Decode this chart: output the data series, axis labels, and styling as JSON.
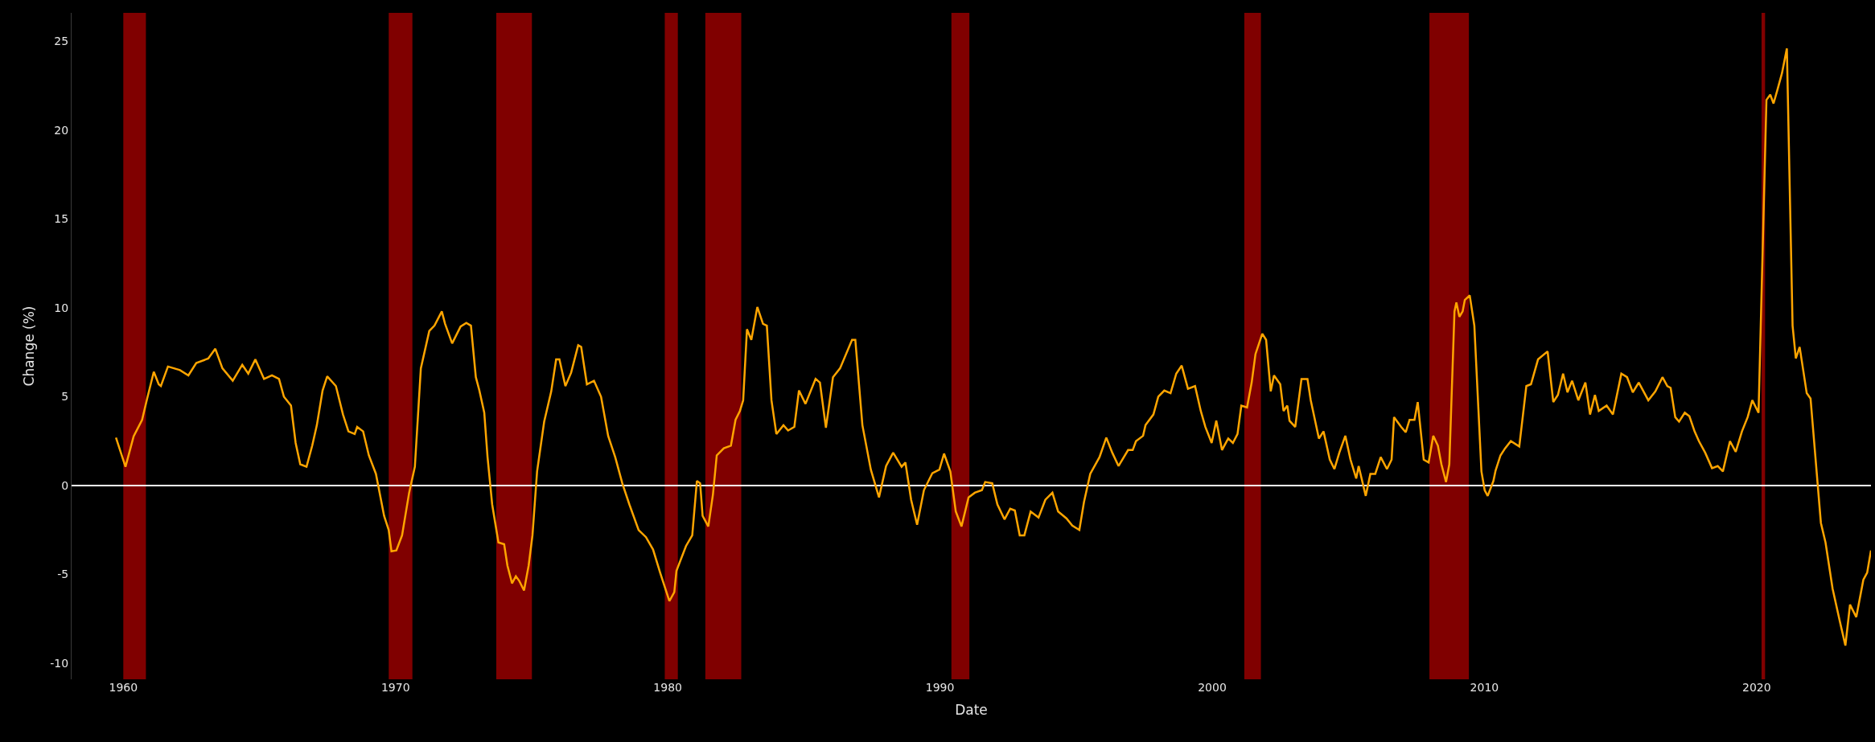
{
  "chart_data": {
    "type": "line",
    "xlabel": "Date",
    "ylabel": "Change (%)",
    "xlim": [
      1958.1,
      2024.2
    ],
    "xticks": [
      1960,
      1970,
      1980,
      1990,
      2000,
      2010,
      2020
    ],
    "ylim": [
      -10.9,
      26.6
    ],
    "yticks": [
      -10,
      -5,
      0,
      5,
      10,
      15,
      20,
      25
    ],
    "grid": false,
    "ref_lines": [
      {
        "axis": "y",
        "value": 0,
        "color": "#ffffff"
      }
    ],
    "bands": [
      {
        "axis": "x",
        "from": 1960.0,
        "to": 1960.83,
        "color": "#800000"
      },
      {
        "axis": "x",
        "from": 1969.75,
        "to": 1970.62,
        "color": "#800000"
      },
      {
        "axis": "x",
        "from": 1973.7,
        "to": 1975.01,
        "color": "#800000"
      },
      {
        "axis": "x",
        "from": 1979.89,
        "to": 1980.37,
        "color": "#800000"
      },
      {
        "axis": "x",
        "from": 1981.38,
        "to": 1982.7,
        "color": "#800000"
      },
      {
        "axis": "x",
        "from": 1990.42,
        "to": 1991.08,
        "color": "#800000"
      },
      {
        "axis": "x",
        "from": 2001.18,
        "to": 2001.79,
        "color": "#800000"
      },
      {
        "axis": "x",
        "from": 2007.98,
        "to": 2009.43,
        "color": "#800000"
      },
      {
        "axis": "x",
        "from": 2020.18,
        "to": 2020.31,
        "color": "#800000"
      }
    ],
    "series": [
      {
        "color": "#ffa500",
        "x": [
          1959.73,
          1960.08,
          1960.38,
          1960.69,
          1960.86,
          1961.12,
          1961.3,
          1961.38,
          1961.64,
          1962.08,
          1962.39,
          1962.68,
          1963.12,
          1963.38,
          1963.64,
          1964.02,
          1964.37,
          1964.59,
          1964.85,
          1965.17,
          1965.46,
          1965.72,
          1965.9,
          1966.16,
          1966.33,
          1966.5,
          1966.73,
          1966.94,
          1967.11,
          1967.32,
          1967.49,
          1967.81,
          1968.07,
          1968.27,
          1968.5,
          1968.59,
          1968.81,
          1969.02,
          1969.28,
          1969.58,
          1969.75,
          1969.85,
          1970.03,
          1970.24,
          1970.5,
          1970.71,
          1970.93,
          1971.24,
          1971.43,
          1971.7,
          1971.82,
          1972.08,
          1972.39,
          1972.6,
          1972.77,
          1972.95,
          1973.08,
          1973.26,
          1973.38,
          1973.55,
          1973.78,
          1973.99,
          1974.11,
          1974.28,
          1974.42,
          1974.54,
          1974.72,
          1974.89,
          1975.03,
          1975.2,
          1975.46,
          1975.72,
          1975.9,
          1976.02,
          1976.24,
          1976.45,
          1976.71,
          1976.82,
          1977.03,
          1977.29,
          1977.55,
          1977.81,
          1978.07,
          1978.33,
          1978.59,
          1978.93,
          1979.2,
          1979.46,
          1979.72,
          1980.06,
          1980.24,
          1980.32,
          1980.67,
          1980.9,
          1981.07,
          1981.19,
          1981.28,
          1981.49,
          1981.66,
          1981.8,
          1982.06,
          1982.32,
          1982.49,
          1982.65,
          1982.77,
          1982.91,
          1983.07,
          1983.29,
          1983.5,
          1983.64,
          1983.81,
          1983.99,
          1984.25,
          1984.42,
          1984.65,
          1984.82,
          1985.06,
          1985.43,
          1985.59,
          1985.81,
          1986.07,
          1986.33,
          1986.77,
          1986.89,
          1987.15,
          1987.46,
          1987.76,
          1988.02,
          1988.28,
          1988.59,
          1988.73,
          1988.94,
          1989.16,
          1989.41,
          1989.72,
          1989.98,
          1990.15,
          1990.38,
          1990.58,
          1990.79,
          1991.05,
          1991.28,
          1991.54,
          1991.66,
          1991.92,
          1992.11,
          1992.37,
          1992.58,
          1992.75,
          1992.93,
          1993.1,
          1993.33,
          1993.62,
          1993.87,
          1994.13,
          1994.34,
          1994.65,
          1994.86,
          1995.12,
          1995.29,
          1995.52,
          1995.86,
          1996.11,
          1996.33,
          1996.56,
          1996.91,
          1997.08,
          1997.2,
          1997.46,
          1997.55,
          1997.84,
          1998.02,
          1998.24,
          1998.47,
          1998.68,
          1998.88,
          1999.11,
          1999.37,
          1999.58,
          1999.75,
          1999.98,
          2000.15,
          2000.36,
          2000.59,
          2000.76,
          2000.93,
          2001.07,
          2001.28,
          2001.45,
          2001.59,
          2001.84,
          2001.98,
          2002.15,
          2002.27,
          2002.5,
          2002.62,
          2002.76,
          2002.84,
          2003.05,
          2003.28,
          2003.5,
          2003.62,
          2003.92,
          2004.09,
          2004.32,
          2004.49,
          2004.67,
          2004.89,
          2005.08,
          2005.29,
          2005.38,
          2005.64,
          2005.81,
          2005.99,
          2006.19,
          2006.42,
          2006.59,
          2006.68,
          2006.94,
          2007.11,
          2007.25,
          2007.43,
          2007.55,
          2007.77,
          2007.95,
          2008.12,
          2008.29,
          2008.42,
          2008.59,
          2008.71,
          2008.9,
          2008.97,
          2009.08,
          2009.2,
          2009.28,
          2009.46,
          2009.63,
          2009.89,
          2010.01,
          2010.12,
          2010.33,
          2010.41,
          2010.59,
          2010.76,
          2010.97,
          2011.28,
          2011.54,
          2011.71,
          2011.97,
          2012.32,
          2012.53,
          2012.7,
          2012.89,
          2013.05,
          2013.22,
          2013.45,
          2013.71,
          2013.88,
          2014.06,
          2014.2,
          2014.49,
          2014.72,
          2015.03,
          2015.24,
          2015.45,
          2015.67,
          2016.02,
          2016.28,
          2016.54,
          2016.72,
          2016.84,
          2017.01,
          2017.15,
          2017.36,
          2017.53,
          2017.72,
          2017.88,
          2018.11,
          2018.36,
          2018.57,
          2018.76,
          2019.02,
          2019.23,
          2019.46,
          2019.67,
          2019.84,
          2020.07,
          2020.36,
          2020.5,
          2020.62,
          2020.76,
          2020.93,
          2021.11,
          2021.32,
          2021.44,
          2021.58,
          2021.84,
          2021.98,
          2022.36,
          2022.53,
          2022.79,
          2023.05,
          2023.26,
          2023.43,
          2023.66,
          2023.92,
          2024.06,
          2024.2
        ],
        "values": [
          2.7,
          1.06,
          2.78,
          3.7,
          4.8,
          6.4,
          5.7,
          5.6,
          6.7,
          6.5,
          6.2,
          6.9,
          7.15,
          7.7,
          6.6,
          5.9,
          6.8,
          6.3,
          7.1,
          6.0,
          6.2,
          6.0,
          5.0,
          4.5,
          2.4,
          1.2,
          1.06,
          2.25,
          3.4,
          5.35,
          6.15,
          5.6,
          4.0,
          3.05,
          2.9,
          3.3,
          3.05,
          1.7,
          0.66,
          -1.7,
          -2.5,
          -3.7,
          -3.65,
          -2.8,
          -0.4,
          1.06,
          6.6,
          8.7,
          9.0,
          9.8,
          9.1,
          8.0,
          8.95,
          9.15,
          9.0,
          6.1,
          5.35,
          4.1,
          1.6,
          -1.06,
          -3.2,
          -3.3,
          -4.5,
          -5.5,
          -5.1,
          -5.35,
          -5.9,
          -4.5,
          -2.8,
          0.8,
          3.6,
          5.3,
          7.1,
          7.1,
          5.6,
          6.35,
          7.9,
          7.8,
          5.7,
          5.9,
          5.0,
          2.8,
          1.6,
          0.13,
          -1.06,
          -2.5,
          -2.9,
          -3.6,
          -4.9,
          -6.5,
          -6.0,
          -4.8,
          -3.4,
          -2.8,
          0.26,
          0.13,
          -1.7,
          -2.3,
          -0.5,
          1.7,
          2.1,
          2.25,
          3.7,
          4.2,
          4.8,
          8.8,
          8.2,
          10.05,
          9.1,
          9.0,
          4.8,
          2.9,
          3.4,
          3.1,
          3.3,
          5.35,
          4.6,
          6.0,
          5.8,
          3.25,
          6.1,
          6.6,
          8.2,
          8.2,
          3.4,
          0.9,
          -0.66,
          1.1,
          1.85,
          1.06,
          1.3,
          -0.8,
          -2.2,
          -0.26,
          0.7,
          0.9,
          1.8,
          0.8,
          -1.46,
          -2.3,
          -0.66,
          -0.4,
          -0.26,
          0.2,
          0.13,
          -1.06,
          -1.9,
          -1.3,
          -1.4,
          -2.8,
          -2.8,
          -1.46,
          -1.8,
          -0.8,
          -0.4,
          -1.46,
          -1.85,
          -2.25,
          -2.5,
          -0.93,
          0.66,
          1.6,
          2.7,
          1.85,
          1.1,
          2.0,
          2.0,
          2.5,
          2.8,
          3.4,
          4.0,
          5.0,
          5.35,
          5.2,
          6.3,
          6.75,
          5.45,
          5.6,
          4.2,
          3.3,
          2.4,
          3.65,
          2.0,
          2.65,
          2.4,
          2.9,
          4.5,
          4.4,
          5.8,
          7.4,
          8.55,
          8.2,
          5.3,
          6.2,
          5.7,
          4.2,
          4.5,
          3.65,
          3.3,
          6.0,
          6.0,
          4.8,
          2.65,
          3.05,
          1.46,
          0.93,
          1.85,
          2.8,
          1.46,
          0.4,
          1.1,
          -0.58,
          0.66,
          0.66,
          1.6,
          0.93,
          1.46,
          3.85,
          3.3,
          3.0,
          3.7,
          3.7,
          4.7,
          1.46,
          1.3,
          2.8,
          2.25,
          1.2,
          0.2,
          1.2,
          9.8,
          10.3,
          9.5,
          9.8,
          10.45,
          10.7,
          9.0,
          0.8,
          -0.26,
          -0.58,
          0.26,
          0.85,
          1.7,
          2.1,
          2.5,
          2.2,
          5.6,
          5.7,
          7.1,
          7.55,
          4.7,
          5.1,
          6.3,
          5.25,
          5.9,
          4.8,
          5.8,
          4.0,
          5.1,
          4.2,
          4.5,
          4.0,
          6.3,
          6.1,
          5.25,
          5.8,
          4.8,
          5.3,
          6.1,
          5.6,
          5.5,
          3.85,
          3.6,
          4.1,
          3.9,
          3.05,
          2.5,
          1.85,
          0.98,
          1.1,
          0.8,
          2.5,
          1.9,
          3.05,
          3.85,
          4.8,
          4.1,
          21.7,
          22.0,
          21.5,
          22.25,
          23.2,
          24.6,
          9.0,
          7.15,
          7.8,
          5.2,
          4.9,
          -2.1,
          -3.2,
          -5.8,
          -7.6,
          -9.0,
          -6.7,
          -7.4,
          -5.3,
          -4.9,
          -3.65
        ]
      }
    ]
  }
}
